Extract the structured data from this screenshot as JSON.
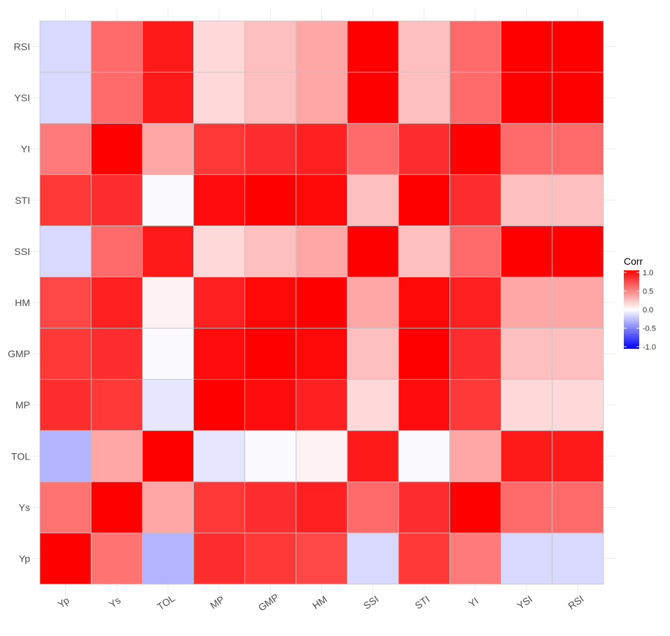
{
  "chart_data": {
    "type": "heatmap",
    "x_categories": [
      "Yp",
      "Ys",
      "TOL",
      "MP",
      "GMP",
      "HM",
      "SSI",
      "STI",
      "YI",
      "YSI",
      "RSI"
    ],
    "y_categories": [
      "Yp",
      "Ys",
      "TOL",
      "MP",
      "GMP",
      "HM",
      "SSI",
      "STI",
      "YI",
      "YSI",
      "RSI"
    ],
    "values": [
      [
        1.0,
        0.55,
        -0.3,
        0.82,
        0.78,
        0.72,
        -0.15,
        0.78,
        0.52,
        -0.15,
        -0.15
      ],
      [
        0.55,
        1.0,
        0.35,
        0.78,
        0.82,
        0.87,
        0.58,
        0.82,
        1.0,
        0.58,
        0.58
      ],
      [
        -0.3,
        0.35,
        1.0,
        -0.1,
        -0.02,
        0.05,
        0.9,
        -0.02,
        0.35,
        0.9,
        0.9
      ],
      [
        0.82,
        0.78,
        -0.1,
        1.0,
        0.95,
        0.87,
        0.15,
        0.95,
        0.78,
        0.15,
        0.15
      ],
      [
        0.78,
        0.82,
        -0.02,
        0.95,
        1.0,
        0.97,
        0.25,
        1.0,
        0.82,
        0.25,
        0.25
      ],
      [
        0.72,
        0.87,
        0.05,
        0.87,
        0.97,
        1.0,
        0.35,
        0.97,
        0.87,
        0.35,
        0.35
      ],
      [
        -0.15,
        0.58,
        0.9,
        0.15,
        0.25,
        0.35,
        1.0,
        0.25,
        0.58,
        1.0,
        1.0
      ],
      [
        0.78,
        0.82,
        -0.02,
        0.95,
        1.0,
        0.97,
        0.25,
        1.0,
        0.82,
        0.25,
        0.25
      ],
      [
        0.52,
        1.0,
        0.35,
        0.78,
        0.82,
        0.87,
        0.58,
        0.82,
        1.0,
        0.58,
        0.58
      ],
      [
        -0.15,
        0.58,
        0.9,
        0.15,
        0.25,
        0.35,
        1.0,
        0.25,
        0.58,
        1.0,
        1.0
      ],
      [
        -0.15,
        0.58,
        0.9,
        0.15,
        0.25,
        0.35,
        1.0,
        0.25,
        0.58,
        1.0,
        1.0
      ]
    ],
    "title": "",
    "xlabel": "",
    "ylabel": "",
    "color_scale": {
      "low": "#0000ff",
      "mid": "#ffffff",
      "high": "#ff0000",
      "limits": [
        -1,
        1
      ]
    },
    "legend": {
      "title": "Corr",
      "ticks": [
        "1.0",
        "0.5",
        "0.0",
        "-0.5",
        "-1.0"
      ],
      "tick_values": [
        1.0,
        0.5,
        0.0,
        -0.5,
        -1.0
      ],
      "position": "right"
    },
    "grid": true
  }
}
